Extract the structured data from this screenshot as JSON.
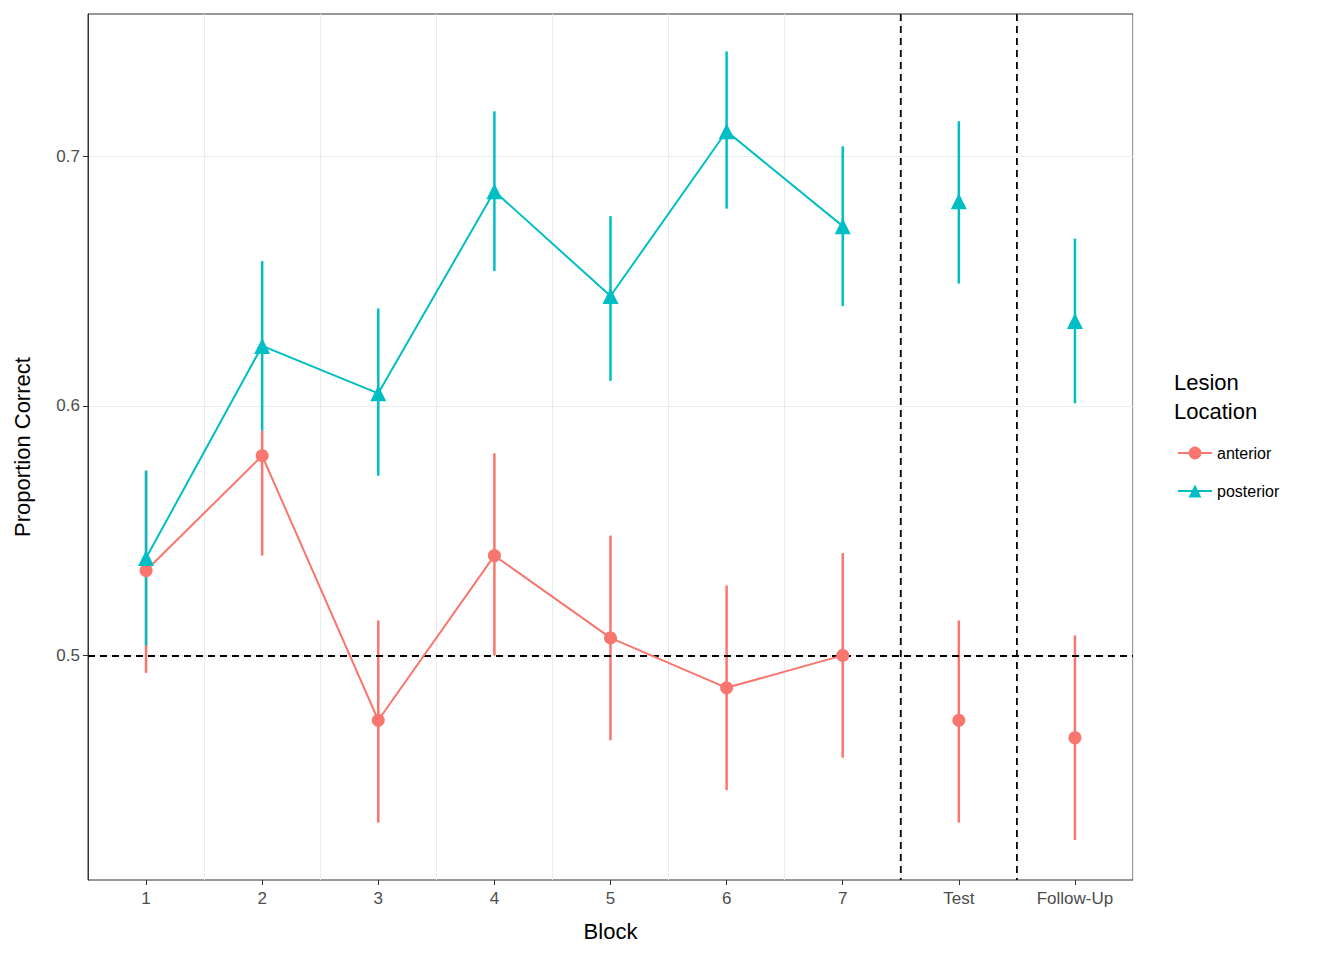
{
  "chart_data": {
    "type": "line",
    "x_label": "Block",
    "y_label": "Proportion Correct",
    "legend_title": "Lesion Location",
    "legend": "right",
    "grid": true,
    "categories": [
      "1",
      "2",
      "3",
      "4",
      "5",
      "6",
      "7",
      "Test",
      "Follow-Up"
    ],
    "panel_starts": [
      "Test",
      "Follow-Up"
    ],
    "hline": 0.5,
    "ylim": [
      0.41,
      0.757
    ],
    "yticks": [
      0.5,
      0.6,
      0.7
    ],
    "series": [
      {
        "name": "anterior",
        "color": "#F8766D",
        "marker": "circle",
        "values": [
          0.534,
          0.58,
          0.474,
          0.54,
          0.507,
          0.487,
          0.5,
          0.474,
          0.467
        ],
        "lower": [
          0.493,
          0.54,
          0.433,
          0.5,
          0.466,
          0.446,
          0.459,
          0.433,
          0.426
        ],
        "upper": [
          0.574,
          0.59,
          0.514,
          0.581,
          0.548,
          0.528,
          0.541,
          0.514,
          0.508
        ]
      },
      {
        "name": "posterior",
        "color": "#00BFC4",
        "marker": "triangle",
        "values": [
          0.539,
          0.624,
          0.605,
          0.686,
          0.644,
          0.71,
          0.672,
          0.682,
          0.634
        ],
        "lower": [
          0.504,
          0.59,
          0.572,
          0.654,
          0.61,
          0.679,
          0.64,
          0.649,
          0.601
        ],
        "upper": [
          0.574,
          0.658,
          0.639,
          0.718,
          0.676,
          0.742,
          0.704,
          0.714,
          0.667
        ]
      }
    ]
  }
}
